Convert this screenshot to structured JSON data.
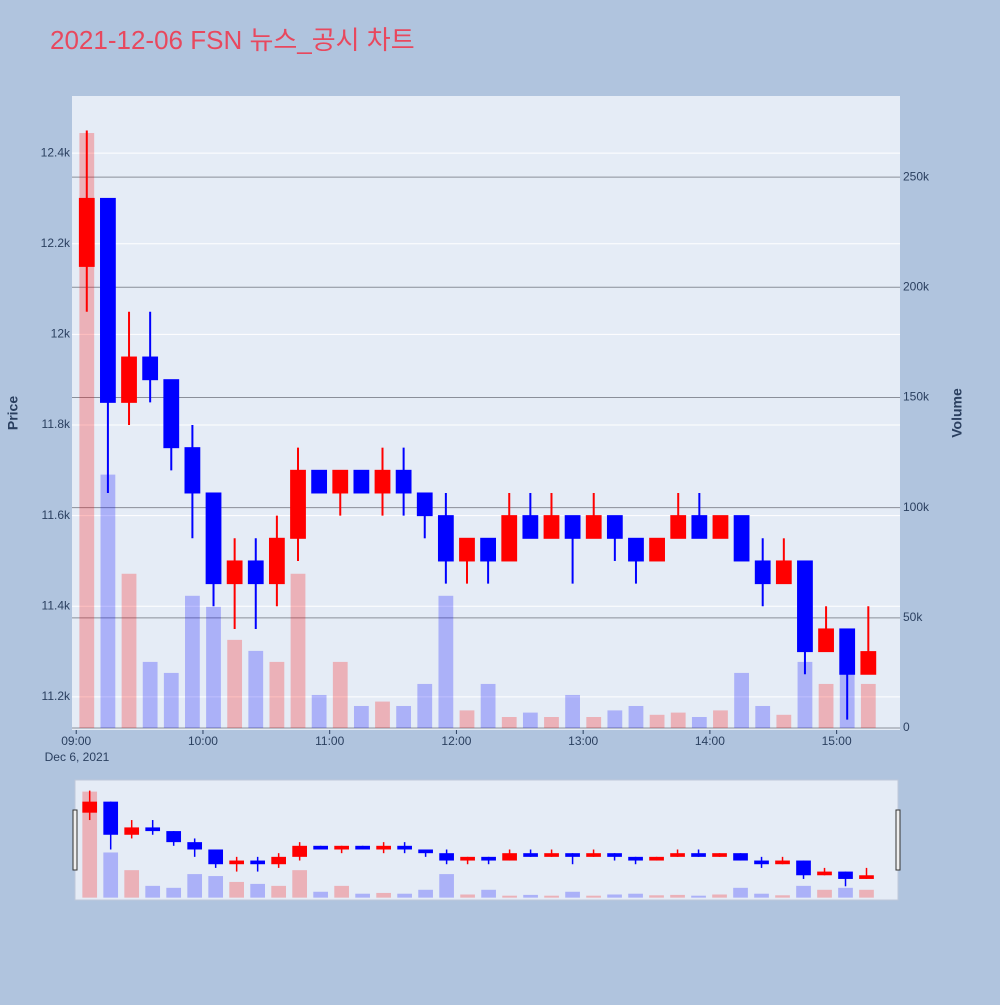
{
  "chart_data": {
    "type": "candlestick",
    "title": "2021-12-06 FSN 뉴스_공시 차트",
    "ylabel": "Price",
    "y2label": "Volume",
    "x_date_label": "Dec 6, 2021",
    "x": [
      "09:05",
      "09:15",
      "09:25",
      "09:35",
      "09:45",
      "09:55",
      "10:05",
      "10:15",
      "10:25",
      "10:35",
      "10:45",
      "10:55",
      "11:05",
      "11:15",
      "11:25",
      "11:35",
      "11:45",
      "11:55",
      "12:05",
      "12:15",
      "12:25",
      "12:35",
      "12:45",
      "12:55",
      "13:05",
      "13:15",
      "13:25",
      "13:35",
      "13:45",
      "13:55",
      "14:05",
      "14:15",
      "14:25",
      "14:35",
      "14:45",
      "14:55",
      "15:05",
      "15:15"
    ],
    "open": [
      12150,
      12300,
      11850,
      11950,
      11900,
      11750,
      11650,
      11450,
      11500,
      11450,
      11550,
      11700,
      11650,
      11700,
      11650,
      11700,
      11650,
      11600,
      11500,
      11550,
      11500,
      11600,
      11550,
      11600,
      11550,
      11600,
      11550,
      11500,
      11550,
      11600,
      11550,
      11600,
      11500,
      11450,
      11500,
      11300,
      11350,
      11250
    ],
    "high": [
      12450,
      12300,
      12050,
      12050,
      11900,
      11800,
      11650,
      11550,
      11550,
      11600,
      11750,
      11700,
      11700,
      11700,
      11750,
      11750,
      11650,
      11650,
      11550,
      11550,
      11650,
      11650,
      11650,
      11600,
      11650,
      11600,
      11550,
      11550,
      11650,
      11650,
      11600,
      11600,
      11550,
      11550,
      11500,
      11400,
      11350,
      11400
    ],
    "low": [
      12050,
      11650,
      11800,
      11850,
      11700,
      11550,
      11400,
      11350,
      11350,
      11400,
      11500,
      11650,
      11600,
      11650,
      11600,
      11600,
      11550,
      11450,
      11450,
      11450,
      11500,
      11550,
      11550,
      11450,
      11550,
      11500,
      11450,
      11500,
      11550,
      11550,
      11550,
      11500,
      11400,
      11450,
      11250,
      11300,
      11150,
      11250
    ],
    "close": [
      12300,
      11850,
      11950,
      11900,
      11750,
      11650,
      11450,
      11500,
      11450,
      11550,
      11700,
      11650,
      11700,
      11650,
      11700,
      11650,
      11600,
      11500,
      11550,
      11500,
      11600,
      11550,
      11600,
      11550,
      11600,
      11550,
      11500,
      11550,
      11600,
      11550,
      11600,
      11500,
      11450,
      11500,
      11300,
      11350,
      11250,
      11300
    ],
    "volume": [
      270000,
      115000,
      70000,
      30000,
      25000,
      60000,
      55000,
      40000,
      35000,
      30000,
      70000,
      15000,
      30000,
      10000,
      12000,
      10000,
      20000,
      60000,
      8000,
      20000,
      5000,
      7000,
      5000,
      15000,
      5000,
      8000,
      10000,
      6000,
      7000,
      5000,
      8000,
      25000,
      10000,
      6000,
      30000,
      20000,
      25000,
      20000
    ],
    "increasing_color": "#ff0000",
    "decreasing_color": "#0000ff",
    "xlim": [
      "08:58",
      "15:30"
    ],
    "xticks": [
      "09:00",
      "10:00",
      "11:00",
      "12:00",
      "13:00",
      "14:00",
      "15:00"
    ],
    "ylim": [
      11127,
      12526
    ],
    "yticks": [
      {
        "value": 11200,
        "label": "11.2k"
      },
      {
        "value": 11400,
        "label": "11.4k"
      },
      {
        "value": 11600,
        "label": "11.6k"
      },
      {
        "value": 11800,
        "label": "11.8k"
      },
      {
        "value": 12000,
        "label": "12k"
      },
      {
        "value": 12200,
        "label": "12.2k"
      },
      {
        "value": 12400,
        "label": "12.4k"
      }
    ],
    "y2lim": [
      -900,
      286800
    ],
    "y2ticks": [
      0,
      {
        "value": 50000,
        "label": "50k"
      },
      {
        "value": 100000,
        "label": "100k"
      },
      {
        "value": 150000,
        "label": "150k"
      },
      {
        "value": 200000,
        "label": "200k"
      },
      {
        "value": 250000,
        "label": "250k"
      }
    ],
    "grid": true,
    "rangeslider": true
  }
}
